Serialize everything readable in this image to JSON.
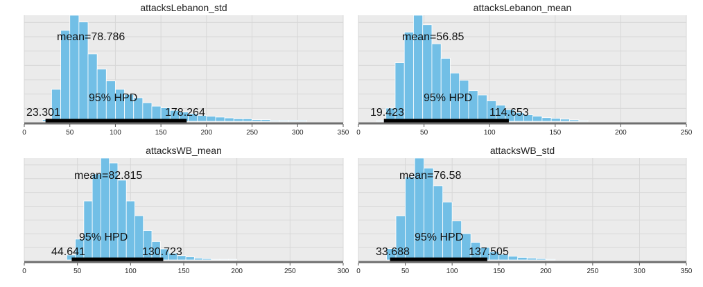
{
  "chart_data": [
    {
      "type": "bar",
      "title": "attacksLebanon_std",
      "xlim": [
        0,
        350
      ],
      "xticks": [
        0,
        50,
        100,
        150,
        200,
        250,
        300,
        350
      ],
      "bin_width": 10,
      "bins_start": [
        20,
        30,
        40,
        50,
        60,
        70,
        80,
        90,
        100,
        110,
        120,
        130,
        140,
        150,
        160,
        170,
        180,
        190,
        200,
        210,
        220,
        230,
        240,
        250,
        260,
        270,
        280,
        290,
        300,
        310,
        320,
        330,
        340
      ],
      "counts": [
        2,
        38,
        108,
        126,
        118,
        80,
        62,
        48,
        38,
        32,
        28,
        22,
        18,
        16,
        13,
        11,
        9,
        7,
        6,
        5,
        4,
        3,
        3,
        2,
        2,
        1,
        1,
        1,
        1,
        0,
        0,
        0,
        0
      ],
      "annotations": {
        "mean_label": "mean=78.786",
        "hpd_label": "95% HPD",
        "hpd_low_label": "23.301",
        "hpd_high_label": "178.264"
      },
      "hpd": [
        23.301,
        178.264
      ],
      "grid": true,
      "legend": "none"
    },
    {
      "type": "bar",
      "title": "attacksLebanon_mean",
      "xlim": [
        0,
        250
      ],
      "xticks": [
        0,
        50,
        100,
        150,
        200,
        250
      ],
      "bin_width": 7,
      "bins_start": [
        14,
        21,
        28,
        35,
        42,
        49,
        56,
        63,
        70,
        77,
        84,
        91,
        98,
        105,
        112,
        119,
        126,
        133,
        140,
        147,
        154,
        161,
        168
      ],
      "counts": [
        1,
        18,
        80,
        122,
        145,
        132,
        106,
        86,
        66,
        56,
        42,
        36,
        28,
        22,
        16,
        12,
        9,
        7,
        5,
        4,
        3,
        2,
        1
      ],
      "annotations": {
        "mean_label": "mean=56.85",
        "hpd_label": "95% HPD",
        "hpd_low_label": "19.423",
        "hpd_high_label": "114.653"
      },
      "hpd": [
        19.423,
        114.653
      ],
      "grid": true,
      "legend": "none"
    },
    {
      "type": "bar",
      "title": "attacksWB_mean",
      "xlim": [
        0,
        300
      ],
      "xticks": [
        0,
        50,
        100,
        150,
        200,
        250,
        300
      ],
      "bin_width": 8,
      "bins_start": [
        40,
        48,
        56,
        64,
        72,
        80,
        88,
        96,
        104,
        112,
        120,
        128,
        136,
        144,
        152,
        160,
        168,
        176,
        184,
        192
      ],
      "counts": [
        8,
        34,
        96,
        140,
        166,
        158,
        130,
        96,
        72,
        48,
        30,
        18,
        11,
        7,
        5,
        3,
        2,
        1,
        1,
        1
      ],
      "annotations": {
        "mean_label": "mean=82.815",
        "hpd_label": "95% HPD",
        "hpd_low_label": "44.641",
        "hpd_high_label": "130.723"
      },
      "hpd": [
        44.641,
        130.723
      ],
      "grid": true,
      "legend": "none"
    },
    {
      "type": "bar",
      "title": "attacksWB_std",
      "xlim": [
        0,
        350
      ],
      "xticks": [
        0,
        50,
        100,
        150,
        200,
        250,
        300,
        350
      ],
      "bin_width": 10,
      "bins_start": [
        30,
        40,
        50,
        60,
        70,
        80,
        90,
        100,
        110,
        120,
        130,
        140,
        150,
        160,
        170,
        180,
        190,
        200
      ],
      "counts": [
        18,
        70,
        132,
        162,
        146,
        118,
        92,
        62,
        42,
        28,
        20,
        13,
        9,
        6,
        4,
        3,
        2,
        1
      ],
      "annotations": {
        "mean_label": "mean=76.58",
        "hpd_label": "95% HPD",
        "hpd_low_label": "33.688",
        "hpd_high_label": "137.505"
      },
      "hpd": [
        33.688,
        137.505
      ],
      "grid": true,
      "legend": "none"
    }
  ],
  "colors": {
    "bar_fill": "#72bfe6",
    "bar_edge": "#ffffff",
    "plot_background": "#ebebeb",
    "grid": "#ffffff",
    "hpd_line": "#000000",
    "axis_line": "#6e6e6e"
  }
}
